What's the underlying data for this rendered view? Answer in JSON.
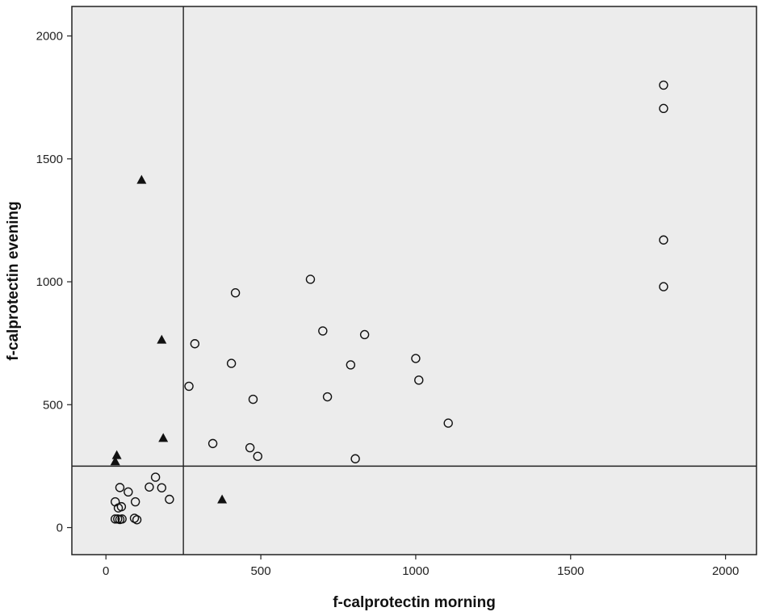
{
  "chart_data": {
    "type": "scatter",
    "xlabel": "f-calprotectin morning",
    "ylabel": "f-calprotectin evening",
    "xlim": [
      -110,
      2100
    ],
    "ylim": [
      -110,
      2120
    ],
    "xticks": [
      0,
      500,
      1000,
      1500,
      2000
    ],
    "yticks": [
      0,
      500,
      1000,
      1500,
      2000
    ],
    "reference_lines": {
      "x": 250,
      "y": 250
    },
    "background": "#ececec",
    "grid": false,
    "series": [
      {
        "marker": "circle",
        "points": [
          [
            1800,
            1800
          ],
          [
            1800,
            1705
          ],
          [
            1800,
            1170
          ],
          [
            1800,
            980
          ],
          [
            660,
            1010
          ],
          [
            418,
            955
          ],
          [
            700,
            800
          ],
          [
            835,
            785
          ],
          [
            287,
            748
          ],
          [
            1000,
            688
          ],
          [
            405,
            668
          ],
          [
            790,
            662
          ],
          [
            1010,
            600
          ],
          [
            268,
            575
          ],
          [
            715,
            532
          ],
          [
            475,
            522
          ],
          [
            1105,
            425
          ],
          [
            345,
            342
          ],
          [
            465,
            325
          ],
          [
            490,
            290
          ],
          [
            805,
            280
          ],
          [
            160,
            205
          ],
          [
            45,
            163
          ],
          [
            140,
            165
          ],
          [
            180,
            162
          ],
          [
            72,
            145
          ],
          [
            205,
            115
          ],
          [
            30,
            105
          ],
          [
            95,
            105
          ],
          [
            50,
            85
          ],
          [
            40,
            80
          ],
          [
            30,
            35
          ],
          [
            38,
            35
          ],
          [
            92,
            38
          ],
          [
            100,
            32
          ],
          [
            45,
            33
          ],
          [
            52,
            35
          ]
        ]
      },
      {
        "marker": "triangle",
        "points": [
          [
            115,
            1415
          ],
          [
            180,
            765
          ],
          [
            185,
            365
          ],
          [
            35,
            295
          ],
          [
            30,
            270
          ],
          [
            375,
            115
          ]
        ]
      }
    ]
  }
}
